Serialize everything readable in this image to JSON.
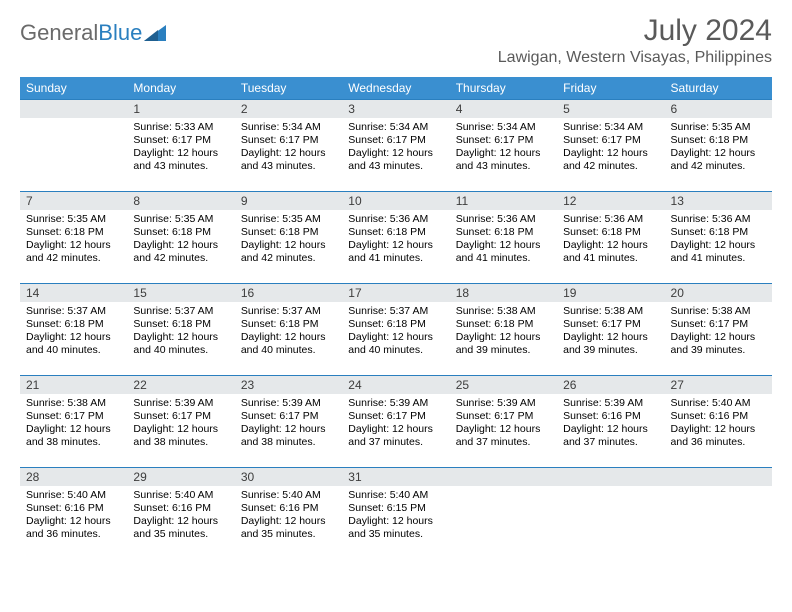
{
  "brand": {
    "part1": "General",
    "part2": "Blue"
  },
  "title": "July 2024",
  "location": "Lawigan, Western Visayas, Philippines",
  "colors": {
    "header_bg": "#3a8fd0",
    "header_text": "#ffffff",
    "daynum_bg": "#e5e8ea",
    "day_border": "#2a7fbf",
    "title_color": "#5a5a5a",
    "logo_blue": "#2a7fbf",
    "logo_gray": "#6a6a6a"
  },
  "day_headers": [
    "Sunday",
    "Monday",
    "Tuesday",
    "Wednesday",
    "Thursday",
    "Friday",
    "Saturday"
  ],
  "weeks": [
    [
      {
        "n": "",
        "lines": []
      },
      {
        "n": "1",
        "lines": [
          "Sunrise: 5:33 AM",
          "Sunset: 6:17 PM",
          "Daylight: 12 hours",
          "and 43 minutes."
        ]
      },
      {
        "n": "2",
        "lines": [
          "Sunrise: 5:34 AM",
          "Sunset: 6:17 PM",
          "Daylight: 12 hours",
          "and 43 minutes."
        ]
      },
      {
        "n": "3",
        "lines": [
          "Sunrise: 5:34 AM",
          "Sunset: 6:17 PM",
          "Daylight: 12 hours",
          "and 43 minutes."
        ]
      },
      {
        "n": "4",
        "lines": [
          "Sunrise: 5:34 AM",
          "Sunset: 6:17 PM",
          "Daylight: 12 hours",
          "and 43 minutes."
        ]
      },
      {
        "n": "5",
        "lines": [
          "Sunrise: 5:34 AM",
          "Sunset: 6:17 PM",
          "Daylight: 12 hours",
          "and 42 minutes."
        ]
      },
      {
        "n": "6",
        "lines": [
          "Sunrise: 5:35 AM",
          "Sunset: 6:18 PM",
          "Daylight: 12 hours",
          "and 42 minutes."
        ]
      }
    ],
    [
      {
        "n": "7",
        "lines": [
          "Sunrise: 5:35 AM",
          "Sunset: 6:18 PM",
          "Daylight: 12 hours",
          "and 42 minutes."
        ]
      },
      {
        "n": "8",
        "lines": [
          "Sunrise: 5:35 AM",
          "Sunset: 6:18 PM",
          "Daylight: 12 hours",
          "and 42 minutes."
        ]
      },
      {
        "n": "9",
        "lines": [
          "Sunrise: 5:35 AM",
          "Sunset: 6:18 PM",
          "Daylight: 12 hours",
          "and 42 minutes."
        ]
      },
      {
        "n": "10",
        "lines": [
          "Sunrise: 5:36 AM",
          "Sunset: 6:18 PM",
          "Daylight: 12 hours",
          "and 41 minutes."
        ]
      },
      {
        "n": "11",
        "lines": [
          "Sunrise: 5:36 AM",
          "Sunset: 6:18 PM",
          "Daylight: 12 hours",
          "and 41 minutes."
        ]
      },
      {
        "n": "12",
        "lines": [
          "Sunrise: 5:36 AM",
          "Sunset: 6:18 PM",
          "Daylight: 12 hours",
          "and 41 minutes."
        ]
      },
      {
        "n": "13",
        "lines": [
          "Sunrise: 5:36 AM",
          "Sunset: 6:18 PM",
          "Daylight: 12 hours",
          "and 41 minutes."
        ]
      }
    ],
    [
      {
        "n": "14",
        "lines": [
          "Sunrise: 5:37 AM",
          "Sunset: 6:18 PM",
          "Daylight: 12 hours",
          "and 40 minutes."
        ]
      },
      {
        "n": "15",
        "lines": [
          "Sunrise: 5:37 AM",
          "Sunset: 6:18 PM",
          "Daylight: 12 hours",
          "and 40 minutes."
        ]
      },
      {
        "n": "16",
        "lines": [
          "Sunrise: 5:37 AM",
          "Sunset: 6:18 PM",
          "Daylight: 12 hours",
          "and 40 minutes."
        ]
      },
      {
        "n": "17",
        "lines": [
          "Sunrise: 5:37 AM",
          "Sunset: 6:18 PM",
          "Daylight: 12 hours",
          "and 40 minutes."
        ]
      },
      {
        "n": "18",
        "lines": [
          "Sunrise: 5:38 AM",
          "Sunset: 6:18 PM",
          "Daylight: 12 hours",
          "and 39 minutes."
        ]
      },
      {
        "n": "19",
        "lines": [
          "Sunrise: 5:38 AM",
          "Sunset: 6:17 PM",
          "Daylight: 12 hours",
          "and 39 minutes."
        ]
      },
      {
        "n": "20",
        "lines": [
          "Sunrise: 5:38 AM",
          "Sunset: 6:17 PM",
          "Daylight: 12 hours",
          "and 39 minutes."
        ]
      }
    ],
    [
      {
        "n": "21",
        "lines": [
          "Sunrise: 5:38 AM",
          "Sunset: 6:17 PM",
          "Daylight: 12 hours",
          "and 38 minutes."
        ]
      },
      {
        "n": "22",
        "lines": [
          "Sunrise: 5:39 AM",
          "Sunset: 6:17 PM",
          "Daylight: 12 hours",
          "and 38 minutes."
        ]
      },
      {
        "n": "23",
        "lines": [
          "Sunrise: 5:39 AM",
          "Sunset: 6:17 PM",
          "Daylight: 12 hours",
          "and 38 minutes."
        ]
      },
      {
        "n": "24",
        "lines": [
          "Sunrise: 5:39 AM",
          "Sunset: 6:17 PM",
          "Daylight: 12 hours",
          "and 37 minutes."
        ]
      },
      {
        "n": "25",
        "lines": [
          "Sunrise: 5:39 AM",
          "Sunset: 6:17 PM",
          "Daylight: 12 hours",
          "and 37 minutes."
        ]
      },
      {
        "n": "26",
        "lines": [
          "Sunrise: 5:39 AM",
          "Sunset: 6:16 PM",
          "Daylight: 12 hours",
          "and 37 minutes."
        ]
      },
      {
        "n": "27",
        "lines": [
          "Sunrise: 5:40 AM",
          "Sunset: 6:16 PM",
          "Daylight: 12 hours",
          "and 36 minutes."
        ]
      }
    ],
    [
      {
        "n": "28",
        "lines": [
          "Sunrise: 5:40 AM",
          "Sunset: 6:16 PM",
          "Daylight: 12 hours",
          "and 36 minutes."
        ]
      },
      {
        "n": "29",
        "lines": [
          "Sunrise: 5:40 AM",
          "Sunset: 6:16 PM",
          "Daylight: 12 hours",
          "and 35 minutes."
        ]
      },
      {
        "n": "30",
        "lines": [
          "Sunrise: 5:40 AM",
          "Sunset: 6:16 PM",
          "Daylight: 12 hours",
          "and 35 minutes."
        ]
      },
      {
        "n": "31",
        "lines": [
          "Sunrise: 5:40 AM",
          "Sunset: 6:15 PM",
          "Daylight: 12 hours",
          "and 35 minutes."
        ]
      },
      {
        "n": "",
        "lines": []
      },
      {
        "n": "",
        "lines": []
      },
      {
        "n": "",
        "lines": []
      }
    ]
  ]
}
